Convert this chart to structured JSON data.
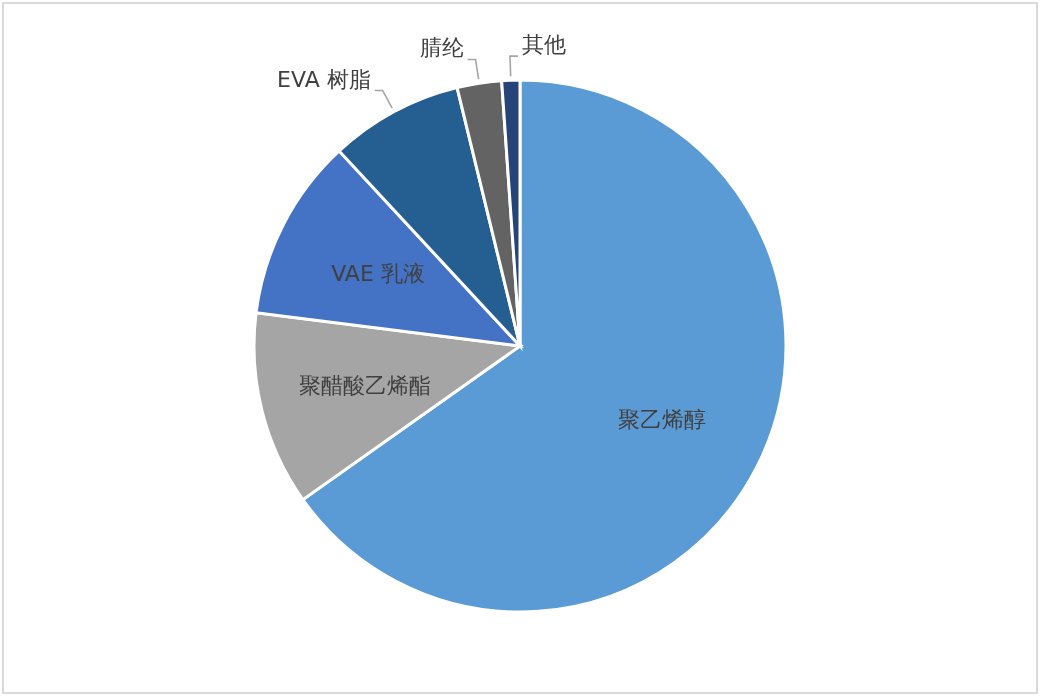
{
  "chart_data": {
    "type": "pie",
    "categories": [
      "聚乙烯醇",
      "聚醋酸乙烯酯",
      "VAE 乳液",
      "EVA 树脂",
      "腈纶",
      "其他"
    ],
    "values": [
      65.2,
      11.8,
      11.1,
      8.1,
      2.7,
      1.1
    ],
    "colors": [
      "#5b9bd5",
      "#a5a5a5",
      "#4472c4",
      "#255e91",
      "#636363",
      "#264478"
    ]
  }
}
